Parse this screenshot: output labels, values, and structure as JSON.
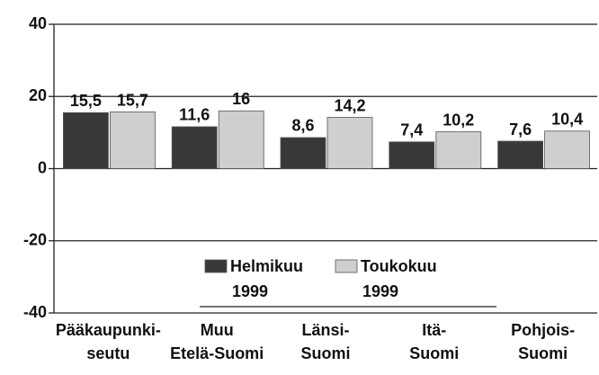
{
  "chart_data": {
    "type": "bar",
    "categories": [
      "Pääkaupunki-\nseutu",
      "Muu\nEtelä-Suomi",
      "Länsi-\nSuomi",
      "Itä-\nSuomi",
      "Pohjois-\nSuomi"
    ],
    "series": [
      {
        "name": "Helmikuu\n1999",
        "color": "#383838",
        "values": [
          15.5,
          11.6,
          8.6,
          7.4,
          7.6
        ],
        "value_labels": [
          "15,5",
          "11,6",
          "8,6",
          "7,4",
          "7,6"
        ]
      },
      {
        "name": "Toukokuu\n1999",
        "color": "#cfcfcf",
        "values": [
          15.7,
          16,
          14.2,
          10.2,
          10.4
        ],
        "value_labels": [
          "15,7",
          "16",
          "14,2",
          "10,2",
          "10,4"
        ]
      }
    ],
    "ylim": [
      -40,
      40
    ],
    "yticks": [
      -40,
      -20,
      0,
      20,
      40
    ],
    "grid": true
  }
}
